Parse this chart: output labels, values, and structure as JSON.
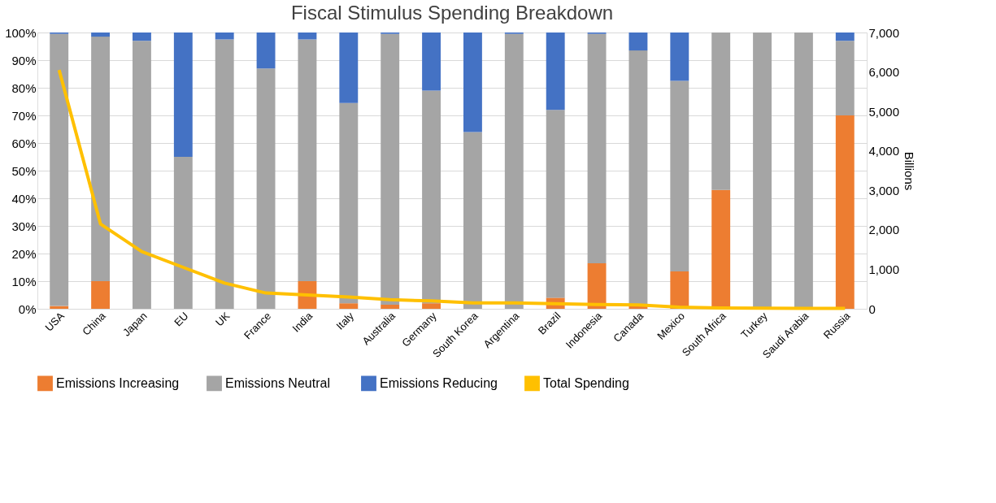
{
  "chart_data": {
    "type": "bar",
    "title": "Fiscal Stimulus Spending Breakdown",
    "y2label": "Billions",
    "stacked": true,
    "grid": "y",
    "legend": "bottom",
    "categories": [
      "USA",
      "China",
      "Japan",
      "EU",
      "UK",
      "France",
      "India",
      "Italy",
      "Australia",
      "Germany",
      "South Korea",
      "Argentina",
      "Brazil",
      "Indonesia",
      "Canada",
      "Mexico",
      "South Africa",
      "Turkey",
      "Saudi Arabia",
      "Russia"
    ],
    "ylim": [
      0,
      100
    ],
    "yticks": [
      {
        "value": 0,
        "label": "0%"
      },
      {
        "value": 10,
        "label": "10%"
      },
      {
        "value": 20,
        "label": "20%"
      },
      {
        "value": 30,
        "label": "30%"
      },
      {
        "value": 40,
        "label": "40%"
      },
      {
        "value": 50,
        "label": "50%"
      },
      {
        "value": 60,
        "label": "60%"
      },
      {
        "value": 70,
        "label": "70%"
      },
      {
        "value": 80,
        "label": "80%"
      },
      {
        "value": 90,
        "label": "90%"
      },
      {
        "value": 100,
        "label": "100%"
      }
    ],
    "y2lim": [
      0,
      7000
    ],
    "y2ticks": [
      0,
      {
        "value": 1000,
        "label": "1,000"
      },
      {
        "value": 2000,
        "label": "2,000"
      },
      {
        "value": 3000,
        "label": "3,000"
      },
      {
        "value": 4000,
        "label": "4,000"
      },
      {
        "value": 5000,
        "label": "5,000"
      },
      {
        "value": 6000,
        "label": "6,000"
      },
      {
        "value": 7000,
        "label": "7,000"
      }
    ],
    "series": [
      {
        "name": "Emissions Increasing",
        "color": "#ed7d31",
        "values": [
          1,
          10,
          0,
          0,
          0,
          0,
          10,
          2,
          1.5,
          2,
          0,
          0,
          4,
          16.5,
          1,
          13.5,
          43,
          0,
          0,
          70
        ]
      },
      {
        "name": "Emissions  Neutral",
        "color": "#a5a5a5",
        "values": [
          98.5,
          88.5,
          97,
          55,
          97.5,
          87,
          87.5,
          72.5,
          98,
          77,
          64,
          99.5,
          68,
          83,
          92.5,
          69,
          57,
          100,
          100,
          27
        ]
      },
      {
        "name": "Emissions Reducing",
        "color": "#4472c4",
        "values": [
          0.5,
          1.5,
          3,
          45,
          2.5,
          13,
          2.5,
          25.5,
          0.5,
          21,
          36,
          0.5,
          28,
          0.5,
          6.5,
          17.5,
          0,
          0,
          0,
          3
        ]
      },
      {
        "name": "Total Spending",
        "color": "#ffc000",
        "type": "line",
        "axis": "y2",
        "values": [
          6050,
          2150,
          1450,
          1050,
          650,
          400,
          350,
          300,
          230,
          200,
          150,
          150,
          130,
          110,
          100,
          40,
          20,
          15,
          10,
          10
        ]
      }
    ]
  }
}
